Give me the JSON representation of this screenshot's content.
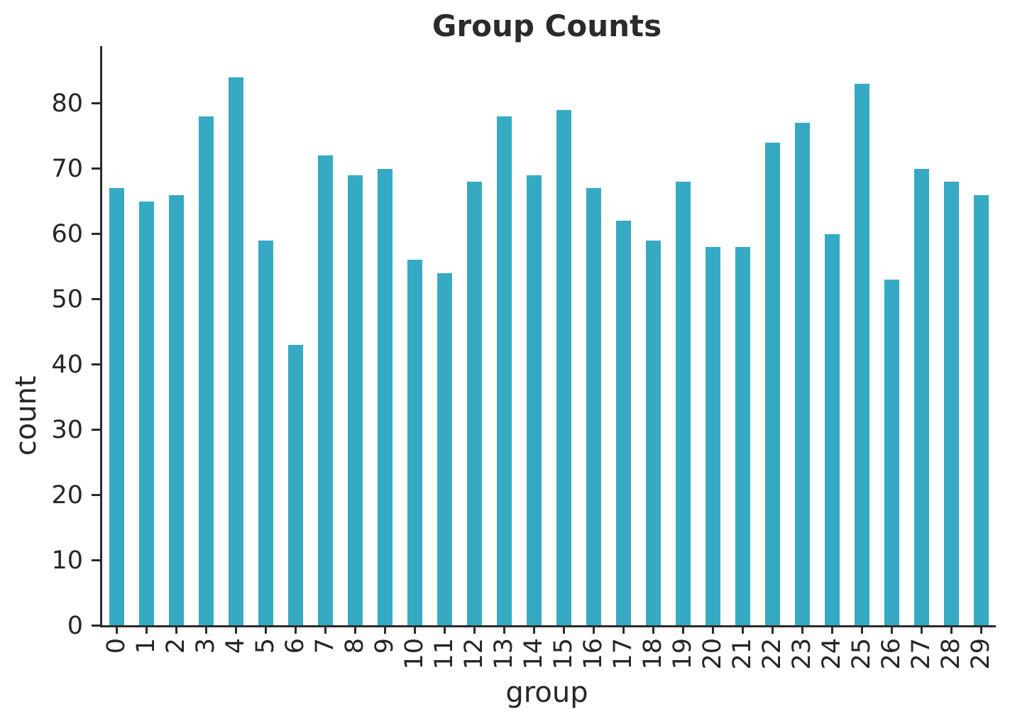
{
  "chart_data": {
    "type": "bar",
    "title": "Group Counts",
    "xlabel": "group",
    "ylabel": "count",
    "categories": [
      "0",
      "1",
      "2",
      "3",
      "4",
      "5",
      "6",
      "7",
      "8",
      "9",
      "10",
      "11",
      "12",
      "13",
      "14",
      "15",
      "16",
      "17",
      "18",
      "19",
      "20",
      "21",
      "22",
      "23",
      "24",
      "25",
      "26",
      "27",
      "28",
      "29"
    ],
    "values": [
      67,
      65,
      66,
      78,
      84,
      59,
      43,
      72,
      69,
      70,
      56,
      54,
      68,
      78,
      69,
      79,
      67,
      62,
      59,
      68,
      58,
      58,
      74,
      77,
      60,
      83,
      53,
      70,
      68,
      66
    ],
    "yticks": [
      0,
      10,
      20,
      30,
      40,
      50,
      60,
      70,
      80
    ],
    "ylim": [
      0,
      88.8
    ],
    "grid": false,
    "legend": null,
    "bar_color": "#36aac3",
    "text_color": "#262626",
    "spine_color": "#2b2b2b"
  }
}
